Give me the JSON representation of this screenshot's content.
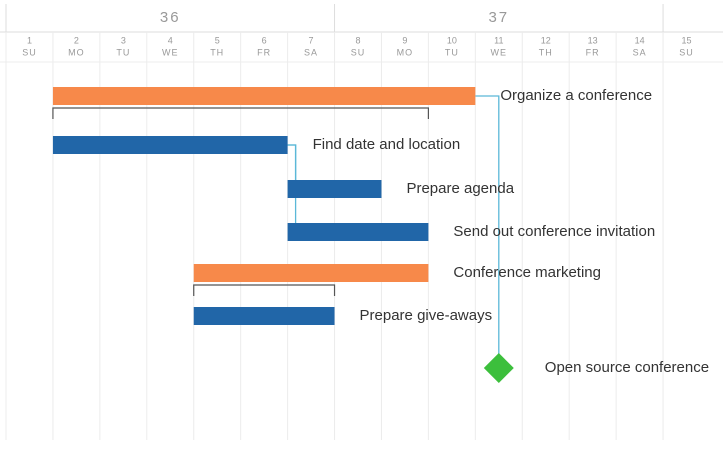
{
  "chart_data": {
    "type": "gantt",
    "xlim": [
      1,
      16
    ],
    "xticks": [
      1,
      2,
      3,
      4,
      5,
      6,
      7,
      8,
      9,
      10,
      11,
      12,
      13,
      14,
      15
    ],
    "weekdays": [
      "SU",
      "MO",
      "TU",
      "WE",
      "TH",
      "FR",
      "SA",
      "SU",
      "MO",
      "TU",
      "WE",
      "TH",
      "FR",
      "SA",
      "SU"
    ],
    "weeks": [
      36,
      37
    ],
    "week_starts": [
      1,
      8
    ],
    "grid": true,
    "tasks": [
      {
        "name": "Organize a conference",
        "start": 2,
        "end": 11,
        "color": "#f7894a"
      },
      {
        "name": "Find date and location",
        "start": 2,
        "end": 7,
        "color": "#2166a8"
      },
      {
        "name": "Prepare agenda",
        "start": 7,
        "end": 9,
        "color": "#2166a8"
      },
      {
        "name": "Send out conference invitation",
        "start": 7,
        "end": 10,
        "color": "#2166a8"
      },
      {
        "name": "Conference marketing",
        "start": 5,
        "end": 10,
        "color": "#f7894a"
      },
      {
        "name": "Prepare give-aways",
        "start": 5,
        "end": 8,
        "color": "#2166a8"
      },
      {
        "name": "Open source conference",
        "start": 11,
        "color": "#3cbf3c"
      }
    ]
  }
}
